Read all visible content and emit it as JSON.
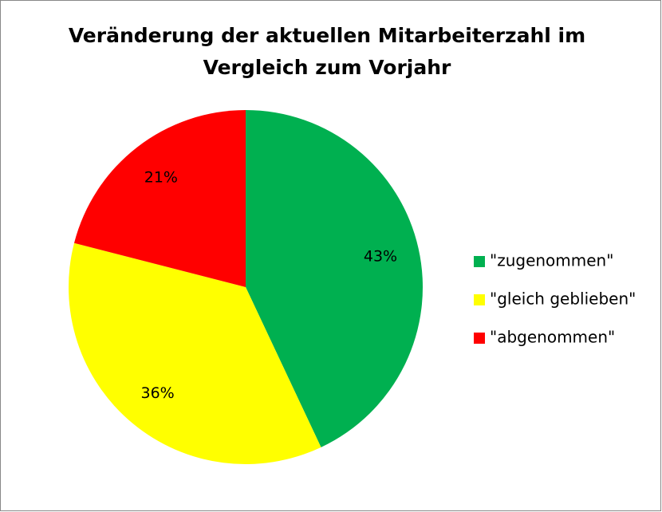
{
  "chart_data": {
    "type": "pie",
    "title": [
      "Veränderung der aktuellen Mitarbeiterzahl im",
      "Vergleich zum Vorjahr"
    ],
    "categories": [
      "\"zugenommen\"",
      "\"gleich geblieben\"",
      "\"abgenommen\""
    ],
    "values": [
      43,
      36,
      21
    ],
    "value_labels": [
      "43%",
      "36%",
      "21%"
    ],
    "colors": [
      "#00b050",
      "#ffff00",
      "#ff0000"
    ],
    "legend": "right"
  }
}
